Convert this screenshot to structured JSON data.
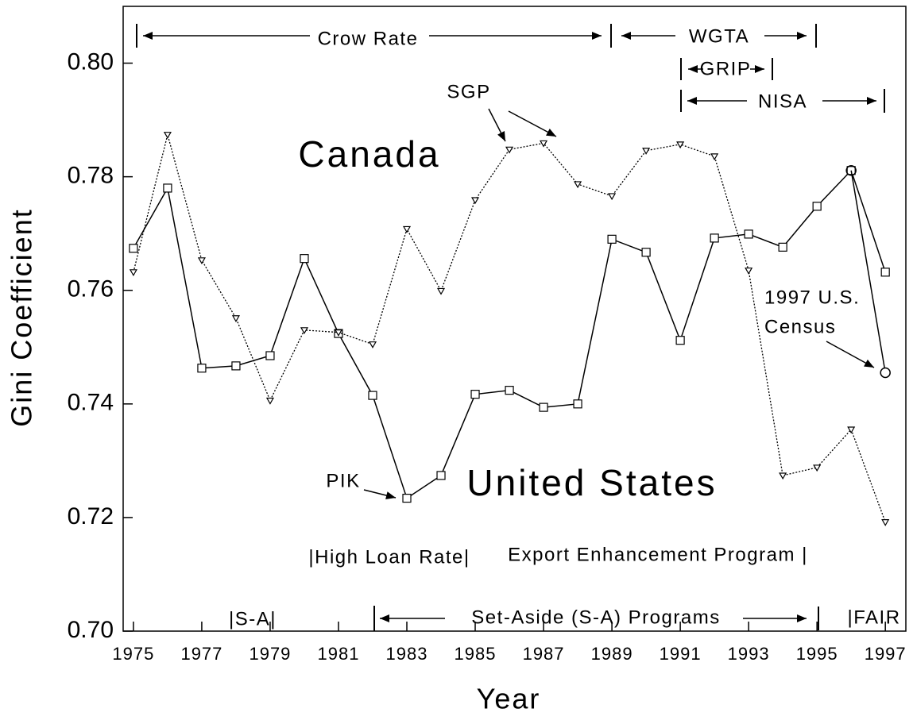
{
  "chart_data": {
    "type": "line",
    "xlabel": "Year",
    "ylabel": "Gini Coefficient",
    "x": [
      1975,
      1976,
      1977,
      1978,
      1979,
      1980,
      1981,
      1982,
      1983,
      1984,
      1985,
      1986,
      1987,
      1988,
      1989,
      1990,
      1991,
      1992,
      1993,
      1994,
      1995,
      1996,
      1997
    ],
    "series": [
      {
        "name": "United States",
        "color": "#000000",
        "style": "solid",
        "marker": "square",
        "values": [
          0.7674,
          0.778,
          0.7463,
          0.7467,
          0.7485,
          0.7656,
          0.7524,
          0.7415,
          0.7234,
          0.7274,
          0.7417,
          0.7424,
          0.7394,
          0.74,
          0.769,
          0.7667,
          0.7512,
          0.7692,
          0.7699,
          0.7676,
          0.7748,
          0.7811,
          0.7632
        ]
      },
      {
        "name": "Canada",
        "color": "#000000",
        "style": "dotted",
        "marker": "triangle-down",
        "values": [
          0.7632,
          0.7874,
          0.7653,
          0.7551,
          0.7406,
          0.753,
          0.7526,
          0.7505,
          0.7708,
          0.7599,
          0.7759,
          0.7848,
          0.7859,
          0.7787,
          0.7766,
          0.7846,
          0.7857,
          0.7836,
          0.7635,
          0.7274,
          0.7288,
          0.7355,
          0.7192
        ]
      }
    ],
    "census_point": {
      "x": 1997,
      "y": 0.7455
    },
    "annotations": [
      "Crow Rate",
      "WGTA",
      "GRIP",
      "NISA",
      "SGP",
      "PIK",
      "1997 U.S.",
      "Census",
      "|High Loan Rate|",
      "Export Enhancement Program |",
      "|S-A|",
      "Set-Aside (S-A) Programs",
      "|FAIR"
    ],
    "xlim": [
      1974.7,
      1997.6
    ],
    "xticks": [
      1975,
      1977,
      1979,
      1981,
      1983,
      1985,
      1987,
      1989,
      1991,
      1993,
      1995,
      1997
    ],
    "ylim": [
      0.7,
      0.81
    ],
    "yticks": [
      {
        "value": 0.7,
        "label": "0.70"
      },
      {
        "value": 0.72,
        "label": "0.72"
      },
      {
        "value": 0.74,
        "label": "0.74"
      },
      {
        "value": 0.76,
        "label": "0.76"
      },
      {
        "value": 0.78,
        "label": "0.78"
      },
      {
        "value": 0.8,
        "label": "0.80"
      }
    ],
    "grid": false
  }
}
